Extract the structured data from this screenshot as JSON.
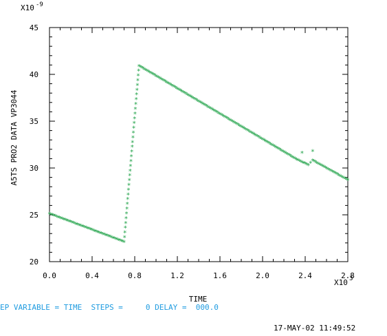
{
  "chart_data": {
    "type": "scatter",
    "title": "",
    "xlabel": "TIME",
    "ylabel": "A5TS PRO2 DATA VP3044",
    "x_multiplier": "X10",
    "x_multiplier_exp": "3",
    "y_multiplier": "X10",
    "y_multiplier_exp": "-9",
    "xlim": [
      0.0,
      2.8
    ],
    "ylim": [
      20,
      45
    ],
    "x_ticks": [
      "0.0",
      "0.4",
      "0.8",
      "1.2",
      "1.6",
      "2.0",
      "2.4",
      "2.8"
    ],
    "y_ticks": [
      "20",
      "25",
      "30",
      "35",
      "40",
      "45"
    ],
    "marker": "*",
    "marker_color": "#22a34a",
    "grid": false,
    "segments": [
      {
        "x0": 0.0,
        "y0": 25.1,
        "x1": 0.7,
        "y1": 22.1
      },
      {
        "x0": 0.7,
        "y0": 22.1,
        "x1": 0.84,
        "y1": 40.9
      },
      {
        "x0": 0.84,
        "y0": 40.9,
        "x1": 2.32,
        "y1": 30.9
      },
      {
        "x0": 2.32,
        "y0": 30.9,
        "x1": 2.43,
        "y1": 30.3
      },
      {
        "x0": 2.43,
        "y0": 30.3,
        "x1": 2.47,
        "y1": 30.8
      },
      {
        "x0": 2.47,
        "y0": 30.8,
        "x1": 2.8,
        "y1": 28.7
      }
    ],
    "outliers": [
      {
        "x": 2.37,
        "y": 31.6
      },
      {
        "x": 2.47,
        "y": 31.8
      }
    ]
  },
  "footer": {
    "status_line": "EP VARIABLE = TIME  STEPS =     0 DELAY =  000.0",
    "timestamp": "17-MAY-02 11:49:52"
  }
}
